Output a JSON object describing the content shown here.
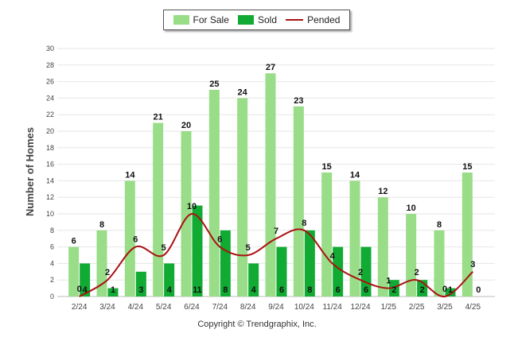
{
  "chart_data": {
    "type": "bar",
    "title": "",
    "xlabel": "",
    "ylabel": "Number of Homes",
    "ylim": [
      0,
      30
    ],
    "yticks": [
      0,
      2,
      4,
      6,
      8,
      10,
      12,
      14,
      16,
      18,
      20,
      22,
      24,
      26,
      28,
      30
    ],
    "grid": true,
    "legend_position": "top-center",
    "categories": [
      "2/24",
      "3/24",
      "4/24",
      "5/24",
      "6/24",
      "7/24",
      "8/24",
      "9/24",
      "10/24",
      "11/24",
      "12/24",
      "1/25",
      "2/25",
      "3/25",
      "4/25"
    ],
    "series": [
      {
        "name": "For Sale",
        "type": "bar",
        "color": "#99dd88",
        "values": [
          6,
          8,
          14,
          21,
          20,
          25,
          24,
          27,
          23,
          15,
          14,
          12,
          10,
          8,
          15
        ]
      },
      {
        "name": "Sold",
        "type": "bar",
        "color": "#11aa33",
        "values": [
          4,
          1,
          3,
          4,
          11,
          8,
          4,
          6,
          8,
          6,
          6,
          2,
          2,
          1,
          0
        ]
      },
      {
        "name": "Pended",
        "type": "line",
        "color": "#aa1111",
        "values": [
          0,
          2,
          6,
          5,
          10,
          6,
          5,
          7,
          8,
          4,
          2,
          1,
          2,
          0,
          3
        ]
      }
    ]
  },
  "legend": {
    "for_sale": "For Sale",
    "sold": "Sold",
    "pended": "Pended"
  },
  "footer": {
    "copyright": "Copyright © Trendgraphix, Inc."
  }
}
